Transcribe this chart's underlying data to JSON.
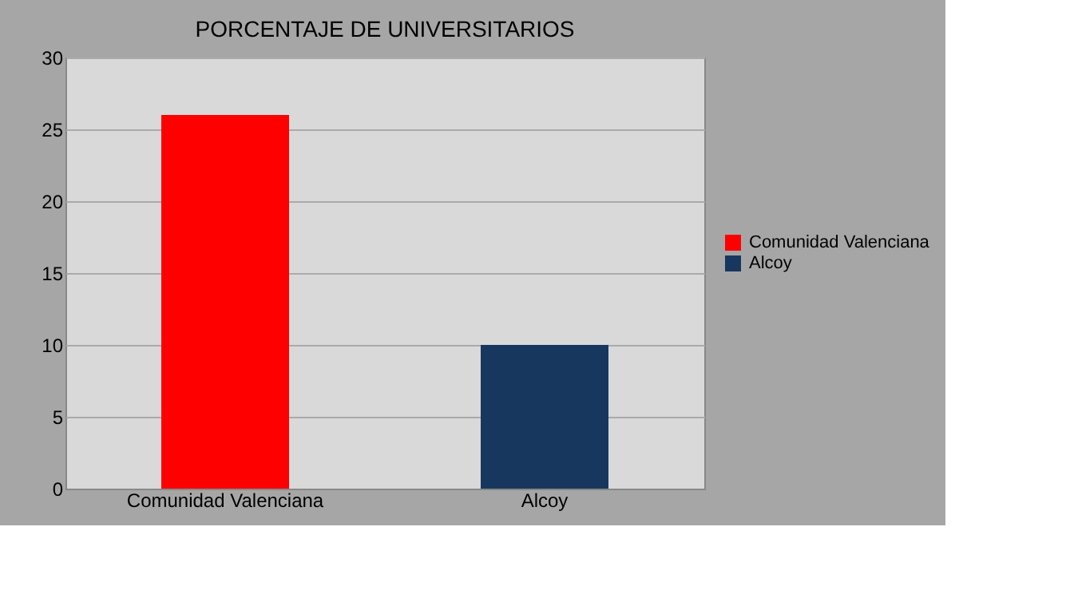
{
  "chart_data": {
    "type": "bar",
    "title": "PORCENTAJE DE UNIVERSITARIOS",
    "categories": [
      "Comunidad Valenciana",
      "Alcoy"
    ],
    "series": [
      {
        "name": "Comunidad Valenciana",
        "color": "#ff0000",
        "values": [
          26,
          null
        ]
      },
      {
        "name": "Alcoy",
        "color": "#17375e",
        "values": [
          null,
          10
        ]
      }
    ],
    "ylim": [
      0,
      30
    ],
    "yticks": [
      0,
      5,
      10,
      15,
      20,
      25,
      30
    ],
    "grid": "y",
    "legend": "right"
  }
}
